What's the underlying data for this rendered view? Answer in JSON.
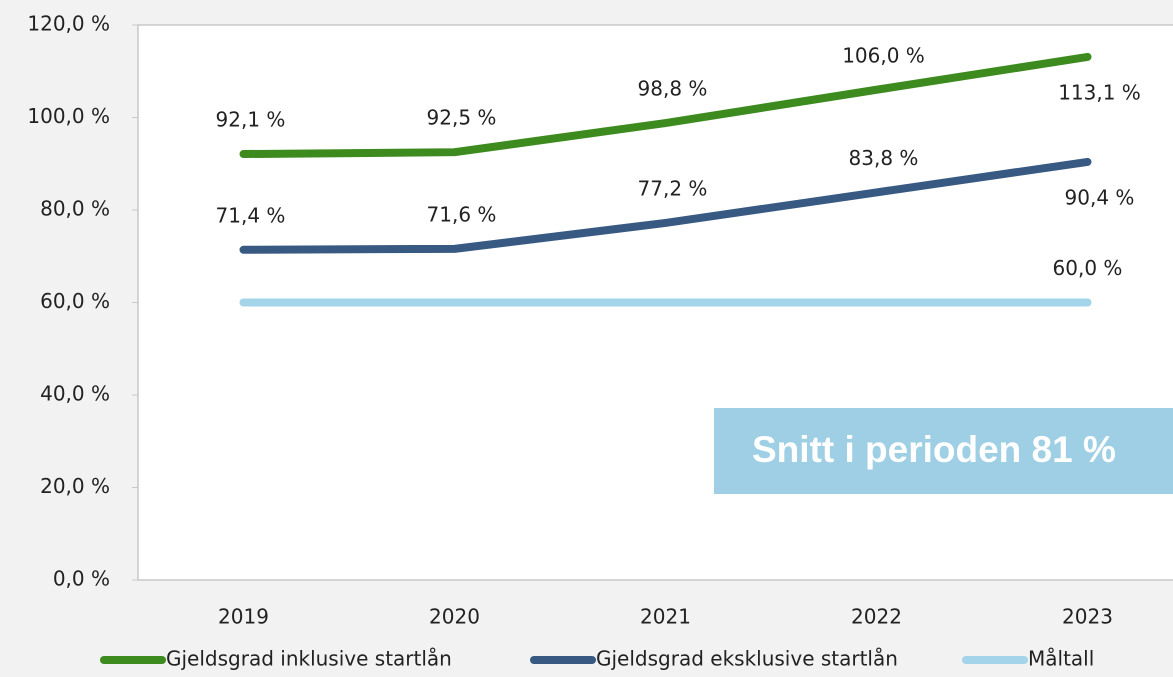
{
  "chart_data": {
    "type": "line",
    "categories": [
      "2019",
      "2020",
      "2021",
      "2022",
      "2023"
    ],
    "series": [
      {
        "name": "Gjeldsgrad inklusive startlån",
        "color": "#3d8b1f",
        "values": [
          92.1,
          92.5,
          98.8,
          106.0,
          113.1
        ],
        "value_labels": [
          "92,1 %",
          "92,5 %",
          "98,8 %",
          "106,0 %",
          "113,1 %"
        ]
      },
      {
        "name": "Gjeldsgrad eksklusive startlån",
        "color": "#385a82",
        "values": [
          71.4,
          71.6,
          77.2,
          83.8,
          90.4
        ],
        "value_labels": [
          "71,4 %",
          "71,6 %",
          "77,2 %",
          "83,8 %",
          "90,4 %"
        ]
      },
      {
        "name": "Måltall",
        "color": "#a3d4ea",
        "values": [
          60.0,
          60.0,
          60.0,
          60.0,
          60.0
        ],
        "value_labels": [
          null,
          null,
          null,
          null,
          "60,0 %"
        ]
      }
    ],
    "ylim": [
      0,
      120
    ],
    "yticks": [
      {
        "value": 0,
        "label": "0,0 %"
      },
      {
        "value": 20,
        "label": "20,0 %"
      },
      {
        "value": 40,
        "label": "40,0 %"
      },
      {
        "value": 60,
        "label": "60,0 %"
      },
      {
        "value": 80,
        "label": "80,0 %"
      },
      {
        "value": 100,
        "label": "100,0 %"
      },
      {
        "value": 120,
        "label": "120,0 %"
      }
    ],
    "annotation": "Snitt i perioden 81 %",
    "legend": "bottom"
  }
}
